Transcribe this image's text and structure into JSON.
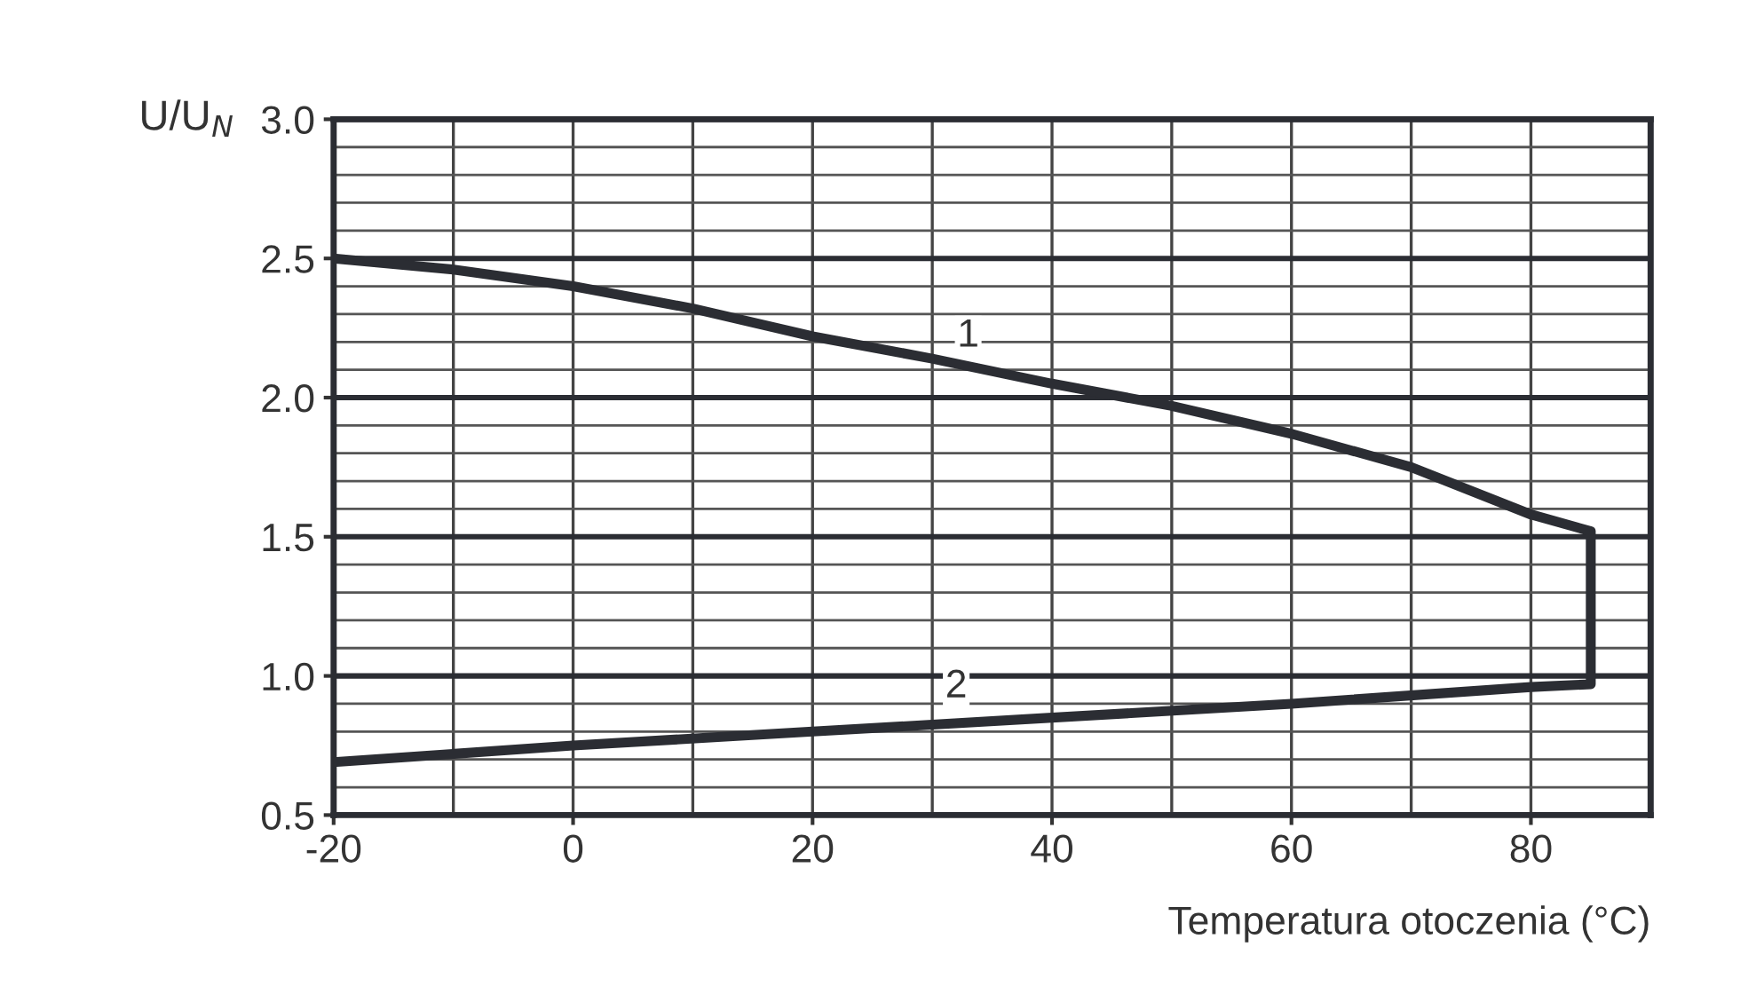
{
  "chart_data": {
    "type": "line",
    "xlabel": "Temperatura otoczenia (°C)",
    "ylabel": "U/U$_{N}$",
    "series": [
      {
        "color": "#2b2d33",
        "x": [
          -20,
          -10,
          0,
          10,
          20,
          30,
          40,
          50,
          60,
          70,
          80,
          85,
          85,
          80,
          60,
          40,
          20,
          0,
          -20
        ],
        "values": [
          2.5,
          2.46,
          2.4,
          2.32,
          2.22,
          2.14,
          2.05,
          1.97,
          1.87,
          1.75,
          1.58,
          1.52,
          0.97,
          0.96,
          0.9,
          0.85,
          0.8,
          0.75,
          0.69
        ]
      }
    ],
    "annotations": [
      {
        "text": "1",
        "x": 33,
        "y": 2.22
      },
      {
        "text": "2",
        "x": 32,
        "y": 0.96
      }
    ],
    "xlim": [
      -20,
      90
    ],
    "ylim": [
      0.5,
      3.0
    ],
    "xticks": [
      {
        "value": -20,
        "label": "-20"
      },
      0,
      20,
      40,
      60,
      80
    ],
    "yticks": [
      {
        "value": 0.5,
        "label": "0.5"
      },
      {
        "value": 1.0,
        "label": "1.0"
      },
      {
        "value": 1.5,
        "label": "1.5"
      },
      {
        "value": 2.0,
        "label": "2.0"
      },
      {
        "value": 2.5,
        "label": "2.5"
      },
      {
        "value": 3.0,
        "label": "3.0"
      }
    ],
    "grid": true,
    "line_style": "solid",
    "marker": "none"
  }
}
